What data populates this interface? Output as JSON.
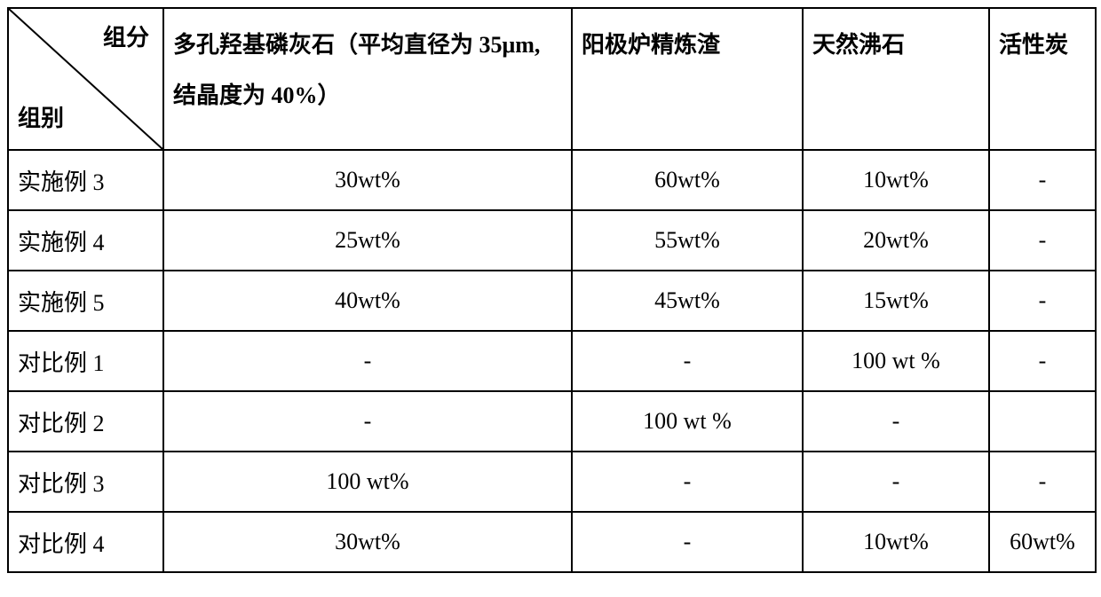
{
  "table": {
    "diagonal_header": {
      "top": "组分",
      "bottom": "组别"
    },
    "columns": [
      "多孔羟基磷灰石（平均直径为 35μm, 结晶度为 40%）",
      "阳极炉精炼渣",
      "天然沸石",
      "活性炭"
    ],
    "rows": [
      {
        "label": "实施例 3",
        "cells": [
          "30wt%",
          "60wt%",
          "10wt%",
          "-"
        ]
      },
      {
        "label": "实施例 4",
        "cells": [
          "25wt%",
          "55wt%",
          "20wt%",
          "-"
        ]
      },
      {
        "label": "实施例 5",
        "cells": [
          "40wt%",
          "45wt%",
          "15wt%",
          "-"
        ]
      },
      {
        "label": "对比例 1",
        "cells": [
          "-",
          "-",
          "100 wt %",
          "-"
        ]
      },
      {
        "label": "对比例 2",
        "cells": [
          "-",
          "100 wt %",
          "-",
          ""
        ]
      },
      {
        "label": "对比例 3",
        "cells": [
          "100 wt%",
          "-",
          "-",
          "-"
        ]
      },
      {
        "label": "对比例 4",
        "cells": [
          "30wt%",
          "-",
          "10wt%",
          "60wt%"
        ]
      }
    ],
    "style": {
      "border_color": "#000000",
      "background_color": "#ffffff",
      "text_color": "#000000",
      "font_size": 26,
      "border_width": 2
    }
  }
}
